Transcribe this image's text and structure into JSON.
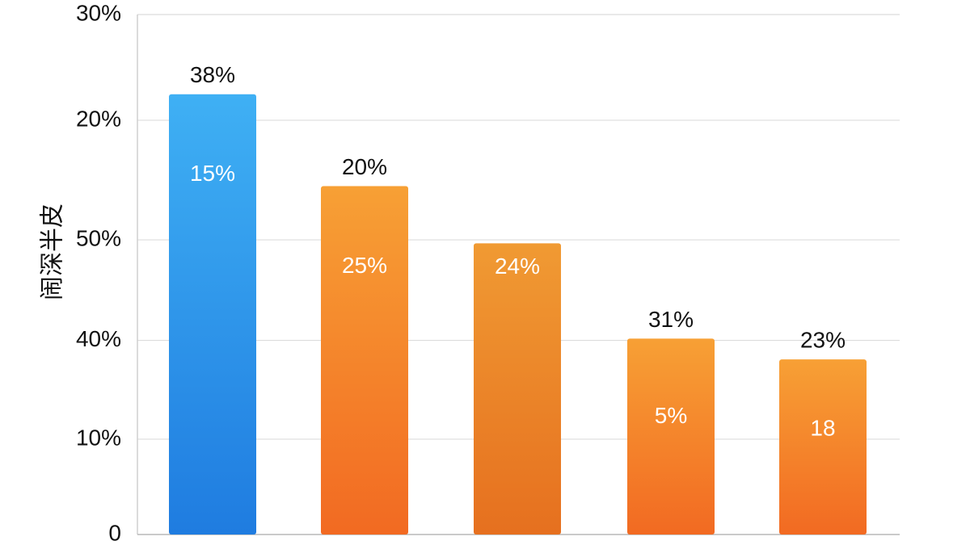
{
  "chart_data": {
    "type": "bar",
    "y_axis_title": "闹深半皮",
    "categories": [
      null,
      null,
      null,
      null,
      null
    ],
    "values": [
      25.4,
      20.1,
      16.8,
      11.3,
      10.1
    ],
    "top_labels": [
      "38%",
      "20%",
      null,
      "31%",
      "23%"
    ],
    "inner_labels": [
      "15%",
      "25%",
      "24%",
      "5%",
      "18"
    ],
    "colors": [
      "#3fb0f4",
      "#f7a035",
      "#f09a33",
      "#f7a035",
      "#f7a035"
    ],
    "colors_bottom": [
      "#1f7ce0",
      "#f26a22",
      "#e6701f",
      "#f26a22",
      "#f26a22"
    ],
    "ylim": [
      0,
      30
    ],
    "yticks": [
      0,
      {
        "value": 5.5,
        "label": "10%"
      },
      {
        "value": 11.2,
        "label": "40%"
      },
      {
        "value": 17.0,
        "label": "50%"
      },
      {
        "value": 23.9,
        "label": "20%"
      },
      {
        "value": 30,
        "label": "30%"
      }
    ],
    "grid": true
  }
}
